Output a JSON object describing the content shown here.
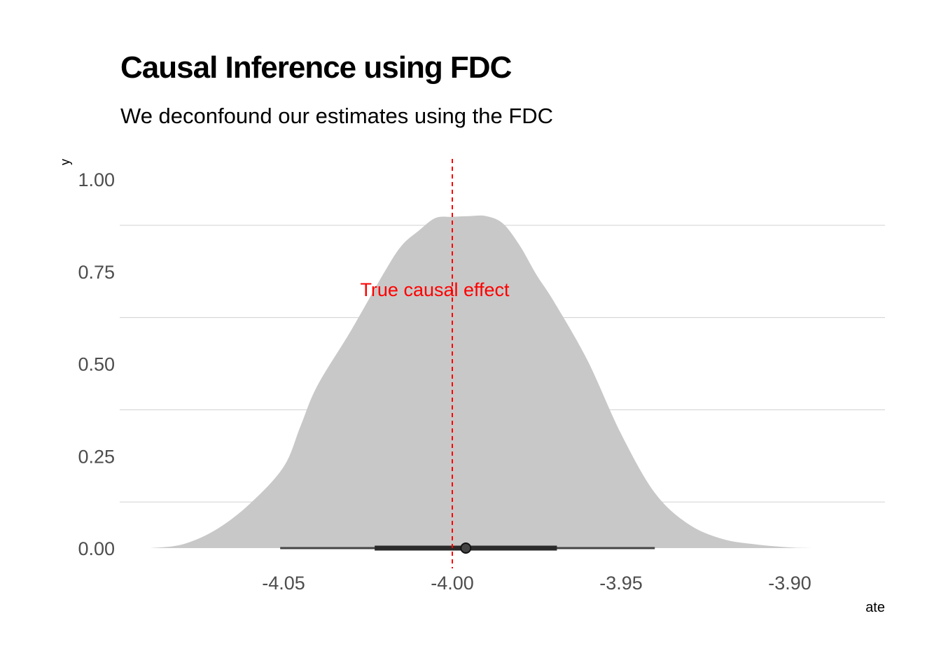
{
  "title": "Causal Inference using FDC",
  "subtitle": "We deconfound our estimates using the FDC",
  "chart_data": {
    "type": "area",
    "title": "Causal Inference using FDC",
    "subtitle": "We deconfound our estimates using the FDC",
    "xlabel": "ate",
    "ylabel": "y",
    "xlim": [
      -4.1,
      -3.88
    ],
    "ylim": [
      0,
      1.0
    ],
    "x_ticks": [
      -4.05,
      -4.0,
      -3.95,
      -3.9
    ],
    "x_tick_labels": [
      "-4.05",
      "-4.00",
      "-3.95",
      "-3.90"
    ],
    "y_ticks": [
      0,
      0.25,
      0.5,
      0.75,
      1.0
    ],
    "y_tick_labels": [
      "0.00",
      "0.25",
      "0.50",
      "0.75",
      "1.00"
    ],
    "grid": "horizontal",
    "density": {
      "x": [
        -4.0895,
        -4.08,
        -4.07,
        -4.06,
        -4.05,
        -4.045,
        -4.04,
        -4.03,
        -4.02,
        -4.015,
        -4.01,
        -4.005,
        -4.0,
        -3.995,
        -3.99,
        -3.985,
        -3.98,
        -3.975,
        -3.97,
        -3.96,
        -3.95,
        -3.94,
        -3.93,
        -3.92,
        -3.91,
        -3.9,
        -3.8935
      ],
      "y": [
        0.0,
        0.01,
        0.05,
        0.12,
        0.22,
        0.33,
        0.44,
        0.59,
        0.75,
        0.82,
        0.86,
        0.895,
        0.898,
        0.9,
        0.9,
        0.88,
        0.82,
        0.74,
        0.67,
        0.51,
        0.31,
        0.15,
        0.065,
        0.025,
        0.01,
        0.002,
        0.0
      ]
    },
    "point_interval": {
      "point": -3.996,
      "inner": [
        -4.023,
        -3.969
      ],
      "outer": [
        -4.051,
        -3.94
      ]
    },
    "reference_line": {
      "x": -4.0,
      "label": "True causal effect",
      "color": "#ff0000"
    },
    "colors": {
      "density_fill": "#c8c8c8",
      "interval": "#444444",
      "grid": "#d0d0d0"
    }
  }
}
